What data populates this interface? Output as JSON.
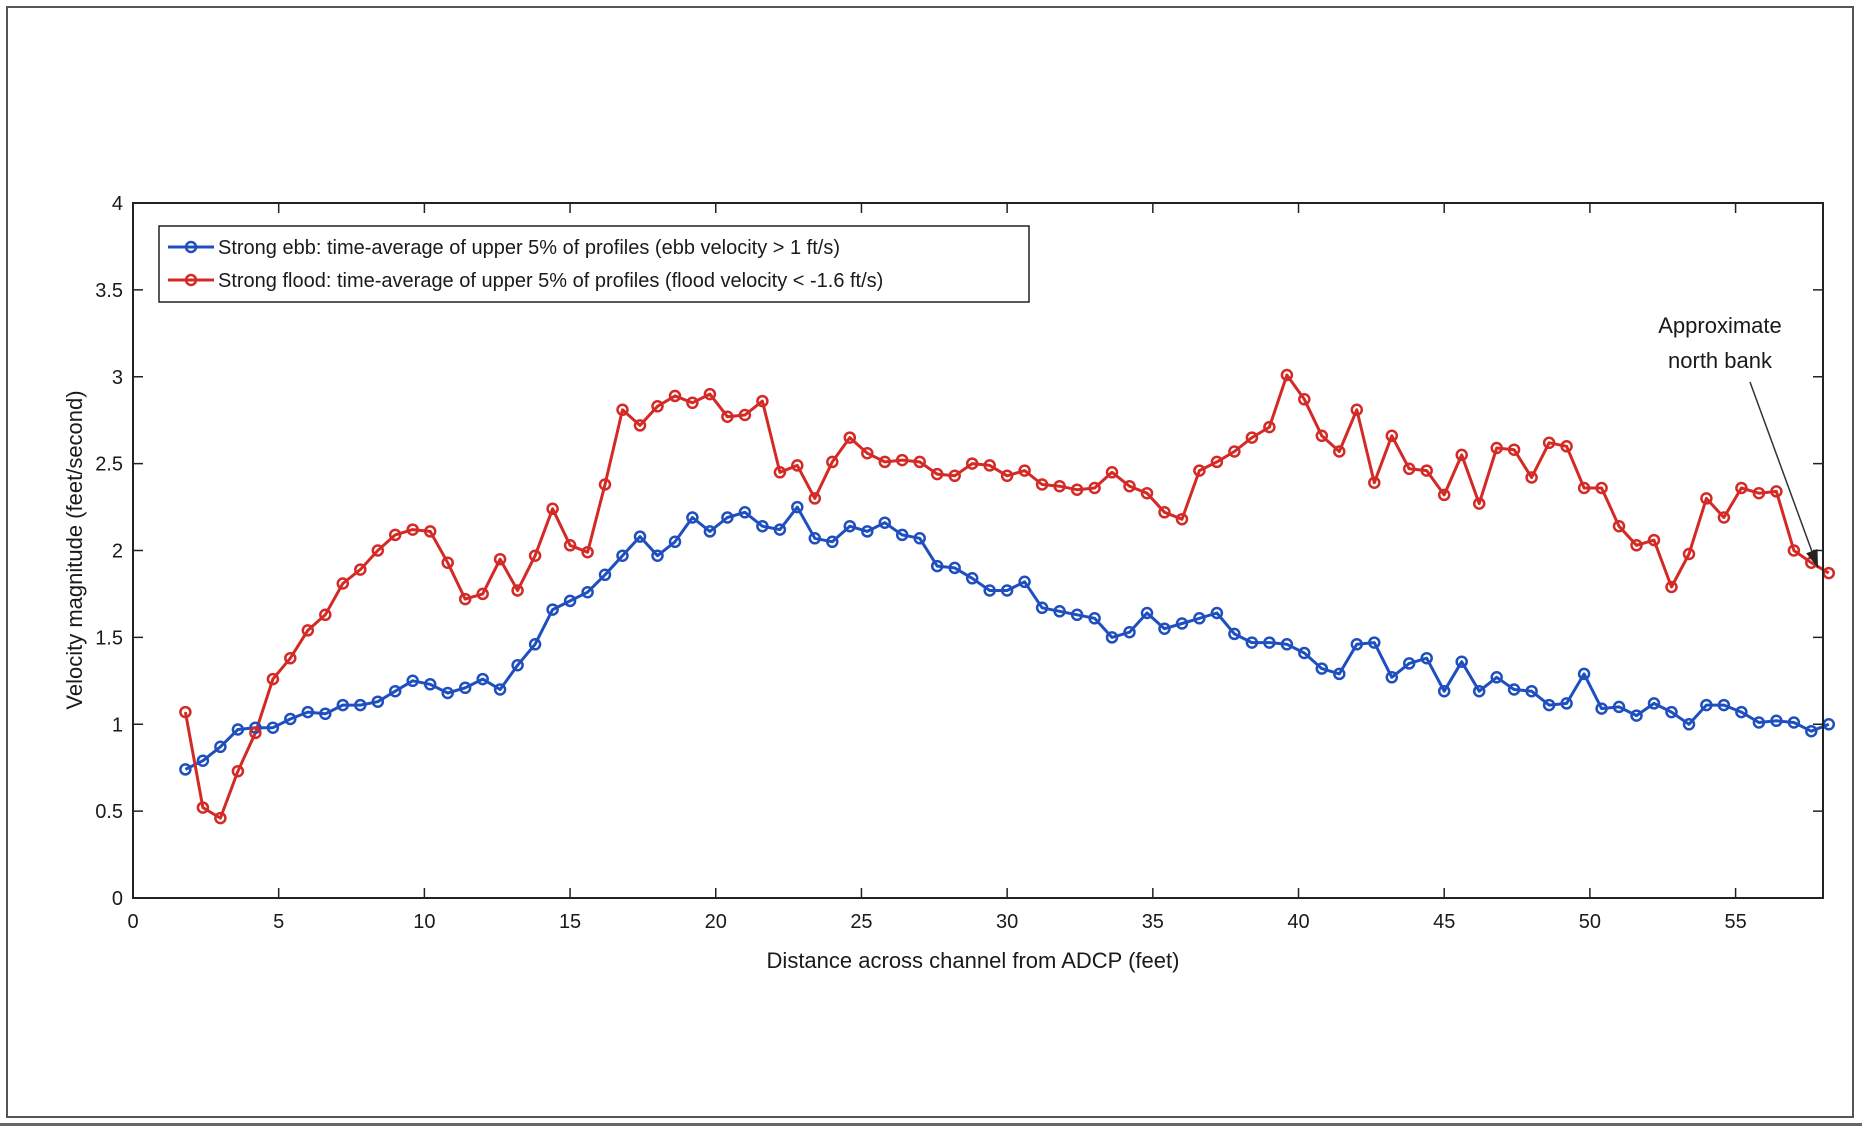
{
  "chart_data": {
    "type": "line",
    "title": "",
    "xlabel": "Distance across channel from ADCP (feet)",
    "ylabel": "Velocity magnitude (feet/second)",
    "xlim": [
      0,
      58
    ],
    "ylim": [
      0,
      4
    ],
    "xticks": [
      0,
      5,
      10,
      15,
      20,
      25,
      30,
      35,
      40,
      45,
      50,
      55
    ],
    "yticks": [
      0,
      0.5,
      1,
      1.5,
      2,
      2.5,
      3,
      3.5,
      4
    ],
    "xtick_labels": [
      "0",
      "5",
      "10",
      "15",
      "20",
      "25",
      "30",
      "35",
      "40",
      "45",
      "50",
      "55"
    ],
    "ytick_labels": [
      "0",
      "0.5",
      "1",
      "1.5",
      "2",
      "2.5",
      "3",
      "3.5",
      "4"
    ],
    "grid": false,
    "legend_position": "top-left",
    "series": [
      {
        "name": "Strong ebb: time-average of upper 5% of profiles (ebb velocity > 1 ft/s)",
        "color": "#1f4fbf",
        "marker": "circle",
        "x": [
          1.8,
          2.4,
          3.0,
          3.6,
          4.2,
          4.8,
          5.4,
          6.0,
          6.6,
          7.2,
          7.8,
          8.4,
          9.0,
          9.6,
          10.2,
          10.8,
          11.4,
          12.0,
          12.6,
          13.2,
          13.8,
          14.4,
          15.0,
          15.6,
          16.2,
          16.8,
          17.4,
          18.0,
          18.6,
          19.2,
          19.8,
          20.4,
          21.0,
          21.6,
          22.2,
          22.8,
          23.4,
          24.0,
          24.6,
          25.2,
          25.8,
          26.4,
          27.0,
          27.6,
          28.2,
          28.8,
          29.4,
          30.0,
          30.6,
          31.2,
          31.8,
          32.4,
          33.0,
          33.6,
          34.2,
          34.8,
          35.4,
          36.0,
          36.6,
          37.2,
          37.8,
          38.4,
          39.0,
          39.6,
          40.2,
          40.8,
          41.4,
          42.0,
          42.6,
          43.2,
          43.8,
          44.4,
          45.0,
          45.6,
          46.2,
          46.8,
          47.4,
          48.0,
          48.6,
          49.2,
          49.8,
          50.4,
          51.0,
          51.6,
          52.2,
          52.8,
          53.4,
          54.0,
          54.6,
          55.2,
          55.8,
          56.4,
          57.0,
          57.6,
          58.2
        ],
        "y": [
          0.74,
          0.79,
          0.87,
          0.97,
          0.98,
          0.98,
          1.03,
          1.07,
          1.06,
          1.11,
          1.11,
          1.13,
          1.19,
          1.25,
          1.23,
          1.18,
          1.21,
          1.26,
          1.2,
          1.34,
          1.46,
          1.66,
          1.71,
          1.76,
          1.86,
          1.97,
          2.08,
          1.97,
          2.05,
          2.19,
          2.11,
          2.19,
          2.22,
          2.14,
          2.12,
          2.25,
          2.07,
          2.05,
          2.14,
          2.11,
          2.16,
          2.09,
          2.07,
          1.91,
          1.9,
          1.84,
          1.77,
          1.77,
          1.82,
          1.67,
          1.65,
          1.63,
          1.61,
          1.5,
          1.53,
          1.64,
          1.55,
          1.58,
          1.61,
          1.64,
          1.52,
          1.47,
          1.47,
          1.46,
          1.41,
          1.32,
          1.29,
          1.46,
          1.47,
          1.27,
          1.35,
          1.38,
          1.19,
          1.36,
          1.19,
          1.27,
          1.2,
          1.19,
          1.11,
          1.12,
          1.29,
          1.09,
          1.1,
          1.05,
          1.12,
          1.07,
          1.0,
          1.11,
          1.11,
          1.07,
          1.01,
          1.02,
          1.01,
          0.96,
          1.0
        ]
      },
      {
        "name": "Strong flood: time-average of upper 5% of profiles (flood velocity < -1.6 ft/s)",
        "color": "#d42a26",
        "marker": "circle",
        "x": [
          1.8,
          2.4,
          3.0,
          3.6,
          4.2,
          4.8,
          5.4,
          6.0,
          6.6,
          7.2,
          7.8,
          8.4,
          9.0,
          9.6,
          10.2,
          10.8,
          11.4,
          12.0,
          12.6,
          13.2,
          13.8,
          14.4,
          15.0,
          15.6,
          16.2,
          16.8,
          17.4,
          18.0,
          18.6,
          19.2,
          19.8,
          20.4,
          21.0,
          21.6,
          22.2,
          22.8,
          23.4,
          24.0,
          24.6,
          25.2,
          25.8,
          26.4,
          27.0,
          27.6,
          28.2,
          28.8,
          29.4,
          30.0,
          30.6,
          31.2,
          31.8,
          32.4,
          33.0,
          33.6,
          34.2,
          34.8,
          35.4,
          36.0,
          36.6,
          37.2,
          37.8,
          38.4,
          39.0,
          39.6,
          40.2,
          40.8,
          41.4,
          42.0,
          42.6,
          43.2,
          43.8,
          44.4,
          45.0,
          45.6,
          46.2,
          46.8,
          47.4,
          48.0,
          48.6,
          49.2,
          49.8,
          50.4,
          51.0,
          51.6,
          52.2,
          52.8,
          53.4,
          54.0,
          54.6,
          55.2,
          55.8,
          56.4,
          57.0,
          57.6,
          58.2
        ],
        "y": [
          1.07,
          0.52,
          0.46,
          0.73,
          0.95,
          1.26,
          1.38,
          1.54,
          1.63,
          1.81,
          1.89,
          2.0,
          2.09,
          2.12,
          2.11,
          1.93,
          1.72,
          1.75,
          1.95,
          1.77,
          1.97,
          2.24,
          2.03,
          1.99,
          2.38,
          2.81,
          2.72,
          2.83,
          2.89,
          2.85,
          2.9,
          2.77,
          2.78,
          2.86,
          2.45,
          2.49,
          2.3,
          2.51,
          2.65,
          2.56,
          2.51,
          2.52,
          2.51,
          2.44,
          2.43,
          2.5,
          2.49,
          2.43,
          2.46,
          2.38,
          2.37,
          2.35,
          2.36,
          2.45,
          2.37,
          2.33,
          2.22,
          2.18,
          2.46,
          2.51,
          2.57,
          2.65,
          2.71,
          3.01,
          2.87,
          2.66,
          2.57,
          2.81,
          2.39,
          2.66,
          2.47,
          2.46,
          2.32,
          2.55,
          2.27,
          2.59,
          2.58,
          2.42,
          2.62,
          2.6,
          2.36,
          2.36,
          2.14,
          2.03,
          2.06,
          1.79,
          1.98,
          2.3,
          2.19,
          2.36,
          2.33,
          2.34,
          2.0,
          1.93,
          1.87
        ]
      }
    ],
    "annotations": [
      {
        "text_line1": "Approximate",
        "text_line2": "north bank",
        "x": 57.9,
        "y": 1.87
      }
    ]
  }
}
